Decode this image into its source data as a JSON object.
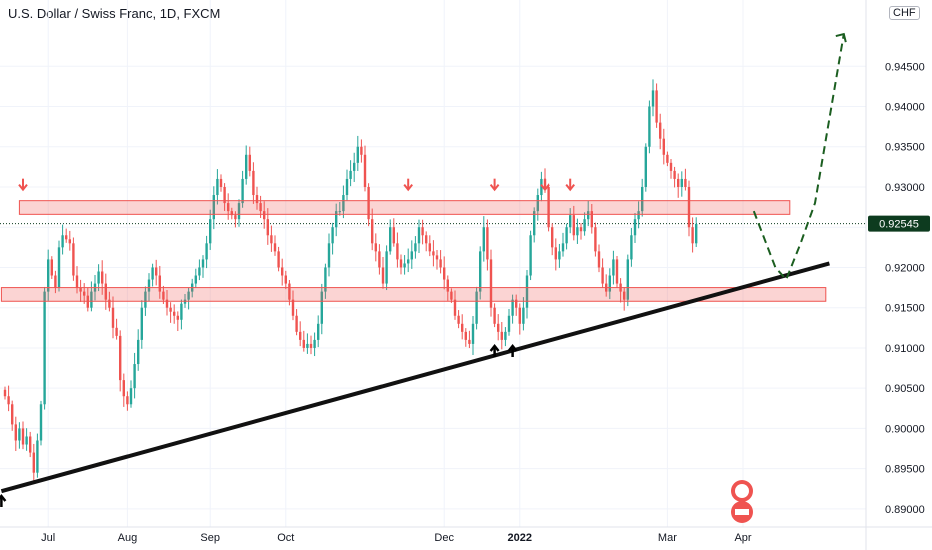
{
  "header": {
    "title": "U.S. Dollar / Swiss Franc, 1D, FXCM",
    "currency": "CHF"
  },
  "colors": {
    "up": "#26a69a",
    "down": "#ef5350",
    "trendline": "#111111",
    "zone_fill": "rgba(239,83,80,0.25)",
    "zone_stroke": "#ef5350",
    "projection": "#1b5e20",
    "badge": "#0d3b1f"
  },
  "chart_data": {
    "type": "candlestick",
    "symbol": "USDCHF",
    "interval": "1D",
    "y_ticks": [
      "0.89000",
      "0.89500",
      "0.90000",
      "0.90500",
      "0.91000",
      "0.91500",
      "0.92000",
      "0.92500",
      "0.93000",
      "0.93500",
      "0.94000",
      "0.94500"
    ],
    "ylim": [
      0.888,
      0.9505
    ],
    "x_labels": [
      {
        "label": "Jul",
        "i": 12,
        "bold": false
      },
      {
        "label": "Aug",
        "i": 34,
        "bold": false
      },
      {
        "label": "Sep",
        "i": 57,
        "bold": false
      },
      {
        "label": "Oct",
        "i": 78,
        "bold": false
      },
      {
        "label": "Dec",
        "i": 122,
        "bold": false
      },
      {
        "label": "2022",
        "i": 143,
        "bold": true
      },
      {
        "label": "Mar",
        "i": 184,
        "bold": false
      },
      {
        "label": "Apr",
        "i": 205,
        "bold": false
      }
    ],
    "last_price": "0.92545",
    "close_series": [
      0.904,
      0.903,
      0.9005,
      0.8985,
      0.9,
      0.898,
      0.899,
      0.897,
      0.8945,
      0.8985,
      0.903,
      0.917,
      0.921,
      0.919,
      0.9175,
      0.9225,
      0.924,
      0.9235,
      0.923,
      0.919,
      0.9175,
      0.917,
      0.9165,
      0.915,
      0.917,
      0.918,
      0.9195,
      0.918,
      0.916,
      0.915,
      0.9125,
      0.9115,
      0.906,
      0.904,
      0.903,
      0.905,
      0.908,
      0.911,
      0.915,
      0.917,
      0.9185,
      0.92,
      0.919,
      0.917,
      0.916,
      0.915,
      0.9145,
      0.914,
      0.9135,
      0.9155,
      0.916,
      0.917,
      0.918,
      0.919,
      0.92,
      0.921,
      0.923,
      0.926,
      0.929,
      0.931,
      0.93,
      0.928,
      0.927,
      0.9265,
      0.926,
      0.928,
      0.931,
      0.934,
      0.932,
      0.929,
      0.928,
      0.927,
      0.926,
      0.924,
      0.923,
      0.922,
      0.92,
      0.919,
      0.918,
      0.916,
      0.914,
      0.912,
      0.911,
      0.91,
      0.9105,
      0.91,
      0.911,
      0.913,
      0.917,
      0.92,
      0.923,
      0.925,
      0.927,
      0.927,
      0.929,
      0.931,
      0.932,
      0.933,
      0.935,
      0.934,
      0.93,
      0.926,
      0.923,
      0.922,
      0.92,
      0.918,
      0.922,
      0.925,
      0.923,
      0.921,
      0.92,
      0.9205,
      0.921,
      0.922,
      0.923,
      0.925,
      0.924,
      0.923,
      0.922,
      0.9215,
      0.921,
      0.92,
      0.9185,
      0.917,
      0.916,
      0.914,
      0.913,
      0.912,
      0.911,
      0.9105,
      0.913,
      0.917,
      0.922,
      0.925,
      0.921,
      0.915,
      0.913,
      0.912,
      0.911,
      0.912,
      0.914,
      0.916,
      0.915,
      0.913,
      0.915,
      0.919,
      0.924,
      0.927,
      0.929,
      0.931,
      0.93,
      0.925,
      0.9225,
      0.921,
      0.922,
      0.923,
      0.925,
      0.9265,
      0.924,
      0.925,
      0.9245,
      0.926,
      0.927,
      0.925,
      0.922,
      0.92,
      0.918,
      0.917,
      0.919,
      0.921,
      0.918,
      0.917,
      0.916,
      0.921,
      0.924,
      0.926,
      0.927,
      0.93,
      0.935,
      0.94,
      0.942,
      0.938,
      0.936,
      0.934,
      0.933,
      0.932,
      0.931,
      0.93,
      0.931,
      0.93,
      0.925,
      0.923,
      0.9254
    ],
    "zones": [
      {
        "name": "resistance",
        "y_top": 0.9283,
        "y_bottom": 0.9266,
        "i_start": 4,
        "i_end": 218
      },
      {
        "name": "support",
        "y_top": 0.9175,
        "y_bottom": 0.9158,
        "i_start": -1,
        "i_end": 228
      }
    ],
    "trendline": {
      "from": {
        "i": -1,
        "y": 0.8922
      },
      "to": {
        "i": 229,
        "y": 0.9205
      }
    },
    "down_arrows_i": [
      5,
      112,
      136,
      150,
      157
    ],
    "up_arrows_i": [
      -1,
      136,
      141
    ],
    "projection": [
      {
        "i": 208,
        "y": 0.927
      },
      {
        "i": 214,
        "y": 0.92
      },
      {
        "i": 217,
        "y": 0.9185
      },
      {
        "i": 221,
        "y": 0.923
      },
      {
        "i": 225,
        "y": 0.928
      },
      {
        "i": 233,
        "y": 0.949
      }
    ]
  }
}
